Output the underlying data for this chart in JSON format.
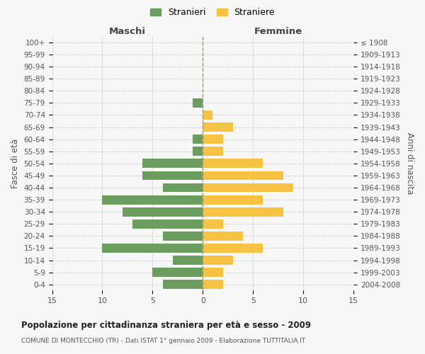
{
  "age_groups": [
    "0-4",
    "5-9",
    "10-14",
    "15-19",
    "20-24",
    "25-29",
    "30-34",
    "35-39",
    "40-44",
    "45-49",
    "50-54",
    "55-59",
    "60-64",
    "65-69",
    "70-74",
    "75-79",
    "80-84",
    "85-89",
    "90-94",
    "95-99",
    "100+"
  ],
  "birth_years": [
    "2004-2008",
    "1999-2003",
    "1994-1998",
    "1989-1993",
    "1984-1988",
    "1979-1983",
    "1974-1978",
    "1969-1973",
    "1964-1968",
    "1959-1963",
    "1954-1958",
    "1949-1953",
    "1944-1948",
    "1939-1943",
    "1934-1938",
    "1929-1933",
    "1924-1928",
    "1919-1923",
    "1914-1918",
    "1909-1913",
    "≤ 1908"
  ],
  "maschi": [
    4,
    5,
    3,
    10,
    4,
    7,
    8,
    10,
    4,
    6,
    6,
    1,
    1,
    0,
    0,
    1,
    0,
    0,
    0,
    0,
    0
  ],
  "femmine": [
    2,
    2,
    3,
    6,
    4,
    2,
    8,
    6,
    9,
    8,
    6,
    2,
    2,
    3,
    1,
    0,
    0,
    0,
    0,
    0,
    0
  ],
  "maschi_color": "#6b9e5e",
  "femmine_color": "#f5c242",
  "title": "Popolazione per cittadinanza straniera per età e sesso - 2009",
  "subtitle": "COMUNE DI MONTECCHIO (TR) - Dati ISTAT 1° gennaio 2009 - Elaborazione TUTTITALIA.IT",
  "xlabel_left": "Maschi",
  "xlabel_right": "Femmine",
  "ylabel_left": "Fasce di età",
  "ylabel_right": "Anni di nascita",
  "xlim": 15,
  "legend_maschi": "Stranieri",
  "legend_femmine": "Straniere",
  "bg_color": "#f7f7f7",
  "grid_color": "#cccccc",
  "bar_height": 0.75
}
